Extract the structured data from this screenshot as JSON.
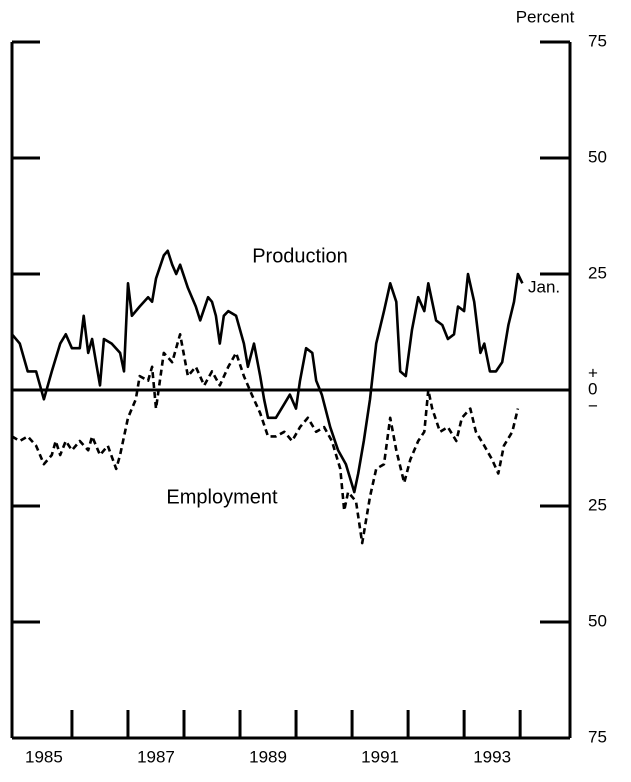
{
  "chart_data": {
    "type": "line",
    "y_axis_label": "Percent",
    "end_label": "Jan.",
    "zero_signs": [
      "+",
      "−"
    ],
    "xlim": [
      1984.93,
      1994.89
    ],
    "xticks": [
      1986,
      1987,
      1988,
      1989,
      1990,
      1991,
      1992,
      1993,
      1994
    ],
    "xlabels": [
      {
        "value": 1985.5,
        "label": "1985"
      },
      {
        "value": 1987.5,
        "label": "1987"
      },
      {
        "value": 1989.5,
        "label": "1989"
      },
      {
        "value": 1991.5,
        "label": "1991"
      },
      {
        "value": 1993.5,
        "label": "1993"
      }
    ],
    "ylim": [
      -75,
      75
    ],
    "yticks": [
      {
        "value": -75,
        "label": "75"
      },
      {
        "value": -50,
        "label": "50"
      },
      {
        "value": -25,
        "label": "25"
      },
      0,
      25,
      50,
      75
    ],
    "series": [
      {
        "name": "Production",
        "color": "#000000",
        "style": "solid",
        "x": [
          1984.93,
          1985.07,
          1985.21,
          1985.36,
          1985.5,
          1985.64,
          1985.79,
          1985.89,
          1986.0,
          1986.14,
          1986.21,
          1986.29,
          1986.36,
          1986.43,
          1986.5,
          1986.57,
          1986.71,
          1986.86,
          1986.93,
          1987.0,
          1987.07,
          1987.21,
          1987.36,
          1987.43,
          1987.5,
          1987.64,
          1987.71,
          1987.79,
          1987.86,
          1987.93,
          1988.07,
          1988.21,
          1988.29,
          1988.43,
          1988.5,
          1988.57,
          1988.64,
          1988.71,
          1988.79,
          1988.93,
          1989.07,
          1989.14,
          1989.25,
          1989.36,
          1989.43,
          1989.5,
          1989.64,
          1989.79,
          1989.89,
          1990.0,
          1990.07,
          1990.18,
          1990.29,
          1990.36,
          1990.46,
          1990.61,
          1990.75,
          1990.89,
          1991.04,
          1991.11,
          1991.21,
          1991.32,
          1991.43,
          1991.57,
          1991.68,
          1991.79,
          1991.86,
          1991.96,
          1992.07,
          1992.18,
          1992.29,
          1992.36,
          1992.43,
          1992.5,
          1992.61,
          1992.71,
          1992.82,
          1992.89,
          1993.0,
          1993.07,
          1993.18,
          1993.29,
          1993.36,
          1993.46,
          1993.57,
          1993.68,
          1993.79,
          1993.89,
          1993.96,
          1994.04
        ],
        "values": [
          12,
          10,
          4,
          4,
          -2,
          4,
          10,
          12,
          9,
          9,
          16,
          8,
          11,
          6,
          1,
          11,
          10,
          8,
          4,
          23,
          16,
          18,
          20,
          19,
          24,
          29,
          30,
          27,
          25,
          27,
          22,
          18,
          15,
          20,
          19,
          16,
          10,
          16,
          17,
          16,
          10,
          5,
          10,
          3,
          -2,
          -6,
          -6,
          -3,
          -1,
          -4,
          2,
          9,
          8,
          2,
          -1,
          -8,
          -13,
          -16,
          -22,
          -18,
          -11,
          -2,
          10,
          17,
          23,
          19,
          4,
          3,
          13,
          20,
          17,
          23,
          19,
          15,
          14,
          11,
          12,
          18,
          17,
          25,
          19,
          8,
          10,
          4,
          4,
          6,
          14,
          19,
          25,
          23
        ]
      },
      {
        "name": "Employment",
        "color": "#000000",
        "style": "dashed",
        "x": [
          1984.93,
          1985.07,
          1985.21,
          1985.36,
          1985.5,
          1985.64,
          1985.71,
          1985.79,
          1985.89,
          1986.0,
          1986.14,
          1986.29,
          1986.36,
          1986.5,
          1986.64,
          1986.79,
          1986.86,
          1987.0,
          1987.14,
          1987.21,
          1987.36,
          1987.43,
          1987.5,
          1987.57,
          1987.64,
          1987.79,
          1987.93,
          1988.07,
          1988.21,
          1988.36,
          1988.5,
          1988.64,
          1988.79,
          1988.93,
          1989.07,
          1989.21,
          1989.36,
          1989.5,
          1989.64,
          1989.79,
          1989.93,
          1990.07,
          1990.21,
          1990.36,
          1990.5,
          1990.64,
          1990.79,
          1990.86,
          1990.93,
          1991.07,
          1991.18,
          1991.32,
          1991.43,
          1991.57,
          1991.68,
          1991.79,
          1991.93,
          1992.04,
          1992.18,
          1992.29,
          1992.36,
          1992.43,
          1992.57,
          1992.71,
          1992.86,
          1992.96,
          1993.11,
          1993.21,
          1993.36,
          1993.5,
          1993.61,
          1993.71,
          1993.86,
          1993.96
        ],
        "values": [
          -10,
          -11,
          -10,
          -12,
          -16,
          -14,
          -11,
          -14,
          -11,
          -13,
          -11,
          -13,
          -10,
          -14,
          -12,
          -17,
          -14,
          -6,
          -2,
          3,
          2,
          5,
          -4,
          2,
          8,
          6,
          12,
          3,
          5,
          1,
          4,
          1,
          5,
          8,
          3,
          -1,
          -5,
          -10,
          -10,
          -9,
          -11,
          -8,
          -6,
          -9,
          -8,
          -11,
          -17,
          -26,
          -22,
          -24,
          -33,
          -23,
          -17,
          -16,
          -6,
          -13,
          -20,
          -15,
          -11,
          -9,
          0,
          -4,
          -9,
          -8,
          -11,
          -6,
          -4,
          -9,
          -12,
          -15,
          -18,
          -12,
          -9,
          -4
        ]
      }
    ]
  }
}
